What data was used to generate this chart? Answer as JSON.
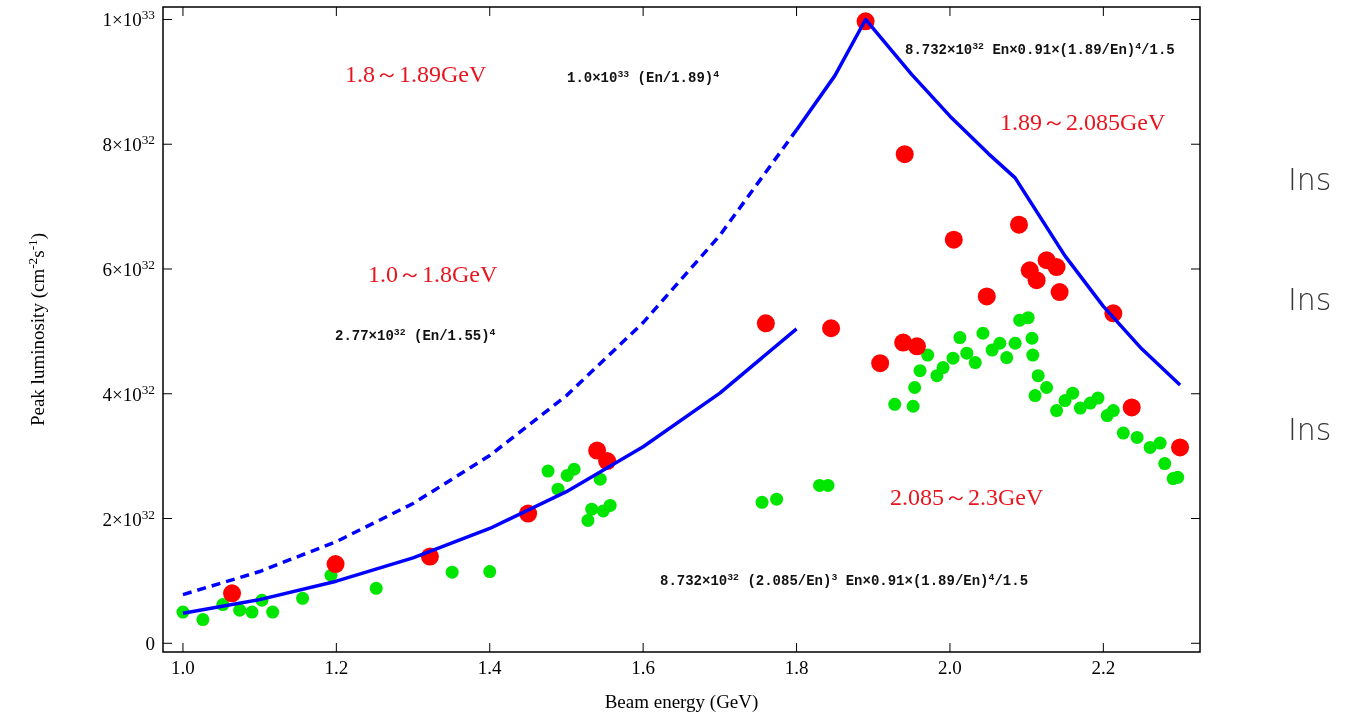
{
  "chart_data": {
    "type": "scatter",
    "xlabel": "Beam energy (GeV)",
    "ylabel": "Peak luminosity (cm$^{-2}$s$^{-1}$)",
    "xlim": [
      0.974,
      2.326
    ],
    "ylim": [
      -1.4e+31,
      1.02e+33
    ],
    "xticks": [
      {
        "value": 1,
        "label": "1.0"
      },
      1.2,
      1.4,
      1.6,
      1.8,
      {
        "value": 2,
        "label": "2.0"
      },
      2.2
    ],
    "yticks": [
      0,
      {
        "value": 2e+32,
        "label": "2×10$^{32}$"
      },
      {
        "value": 4e+32,
        "label": "4×10$^{32}$"
      },
      {
        "value": 6e+32,
        "label": "6×10$^{32}$"
      },
      {
        "value": 8e+32,
        "label": "8×10$^{32}$"
      },
      {
        "value": 1e+33,
        "label": "1×10$^{33}$"
      }
    ],
    "grid": false,
    "marker": "circle",
    "series": [
      {
        "color": "#00e600",
        "x": [
          1.0,
          1.026,
          1.052,
          1.074,
          1.09,
          1.103,
          1.117,
          1.156,
          1.193,
          1.252,
          1.351,
          1.4,
          1.476,
          1.489,
          1.501,
          1.51,
          1.544,
          1.528,
          1.533,
          1.548,
          1.557,
          1.755,
          1.774,
          1.83,
          1.841,
          1.928,
          1.952,
          1.954,
          1.961,
          1.971,
          1.983,
          1.991,
          2.004,
          2.013,
          2.022,
          2.033,
          2.043,
          2.055,
          2.065,
          2.074,
          2.085,
          2.091,
          2.102,
          2.107,
          2.108,
          2.115,
          2.111,
          2.126,
          2.139,
          2.15,
          2.16,
          2.17,
          2.183,
          2.193,
          2.205,
          2.213,
          2.226,
          2.244,
          2.261,
          2.274,
          2.28,
          2.291,
          2.297
        ],
        "values": [
          5e+31,
          3.8e+31,
          6.2e+31,
          5.3e+31,
          5e+31,
          6.9e+31,
          5e+31,
          7.2e+31,
          1.09e+32,
          8.8e+31,
          1.14e+32,
          1.15e+32,
          2.76e+32,
          2.47e+32,
          2.69e+32,
          2.79e+32,
          2.63e+32,
          1.97e+32,
          2.15e+32,
          2.12e+32,
          2.21e+32,
          2.26e+32,
          2.31e+32,
          2.53e+32,
          2.53e+32,
          3.83e+32,
          3.8e+32,
          4.1e+32,
          4.37e+32,
          4.62e+32,
          4.29e+32,
          4.42e+32,
          4.57e+32,
          4.9e+32,
          4.65e+32,
          4.5e+32,
          4.97e+32,
          4.7e+32,
          4.81e+32,
          4.58e+32,
          4.81e+32,
          5.18e+32,
          5.22e+32,
          4.89e+32,
          4.62e+32,
          4.29e+32,
          3.97e+32,
          4.1e+32,
          3.73e+32,
          3.89e+32,
          4.01e+32,
          3.77e+32,
          3.85e+32,
          3.93e+32,
          3.65e+32,
          3.73e+32,
          3.37e+32,
          3.3e+32,
          3.14e+32,
          3.21e+32,
          2.88e+32,
          2.64e+32,
          2.66e+32
        ]
      },
      {
        "color": "#ff0000",
        "x": [
          1.064,
          1.199,
          1.322,
          1.45,
          1.54,
          1.553,
          1.76,
          1.845,
          1.89,
          1.941,
          2.005,
          2.09,
          2.048,
          2.104,
          2.126,
          2.113,
          2.139,
          2.143,
          2.213,
          1.909,
          1.939,
          1.957,
          2.237,
          2.3
        ],
        "values": [
          8e+31,
          1.27e+32,
          1.39e+32,
          2.08e+32,
          3.09e+32,
          2.92e+32,
          5.13e+32,
          5.05e+32,
          9.97e+32,
          7.84e+32,
          6.47e+32,
          6.71e+32,
          5.56e+32,
          5.98e+32,
          6.14e+32,
          5.82e+32,
          6.03e+32,
          5.63e+32,
          5.29e+32,
          4.49e+32,
          4.82e+32,
          4.76e+32,
          3.78e+32,
          3.14e+32
        ]
      },
      {
        "type": "line",
        "marker": "none",
        "color": "#0000ff",
        "line_style": "solid",
        "x": [
          1.0,
          1.1,
          1.2,
          1.3,
          1.4,
          1.5,
          1.6,
          1.7,
          1.8
        ],
        "values": [
          4.8e+31,
          7e+31,
          9.95e+31,
          1.37e+32,
          1.84e+32,
          2.43e+32,
          3.15e+32,
          4.01e+32,
          5.04e+32
        ]
      },
      {
        "type": "line",
        "marker": "none",
        "color": "#0000ff",
        "line_style": "dashed",
        "x": [
          1.0,
          1.1,
          1.2,
          1.3,
          1.4,
          1.5,
          1.6,
          1.7,
          1.8
        ],
        "values": [
          7.8e+31,
          1.15e+32,
          1.63e+32,
          2.24e+32,
          3.01e+32,
          3.97e+32,
          5.14e+32,
          6.54e+32,
          8.23e+32
        ]
      },
      {
        "type": "line",
        "marker": "none",
        "color": "#0000ff",
        "line_style": "solid",
        "x": [
          1.8,
          1.85,
          1.89,
          1.95,
          2.0,
          2.05,
          2.085,
          2.15,
          2.2,
          2.25,
          2.3
        ],
        "values": [
          8.23e+32,
          9.1e+32,
          1e+33,
          9.12e+32,
          8.45e+32,
          7.85e+32,
          7.46e+32,
          6.21e+32,
          5.4e+32,
          4.72e+32,
          4.14e+32
        ]
      }
    ],
    "annotations": [
      "1.8～1.89GeV",
      "1.0×10$^{33}$ (En/1.89)$^{4}$",
      "1.0～1.8GeV",
      "2.77×10$^{32}$ (En/1.55)$^{4}$",
      "8.732×10$^{32}$ En×0.91×(1.89/En)$^{4}$/1.5",
      "1.89～2.085GeV",
      "2.085～2.3GeV",
      "8.732×10$^{32}$ (2.085/En)$^{3}$ En×0.91×(1.89/En)$^{4}$/1.5",
      "Ins",
      "Ins",
      "Ins"
    ]
  }
}
